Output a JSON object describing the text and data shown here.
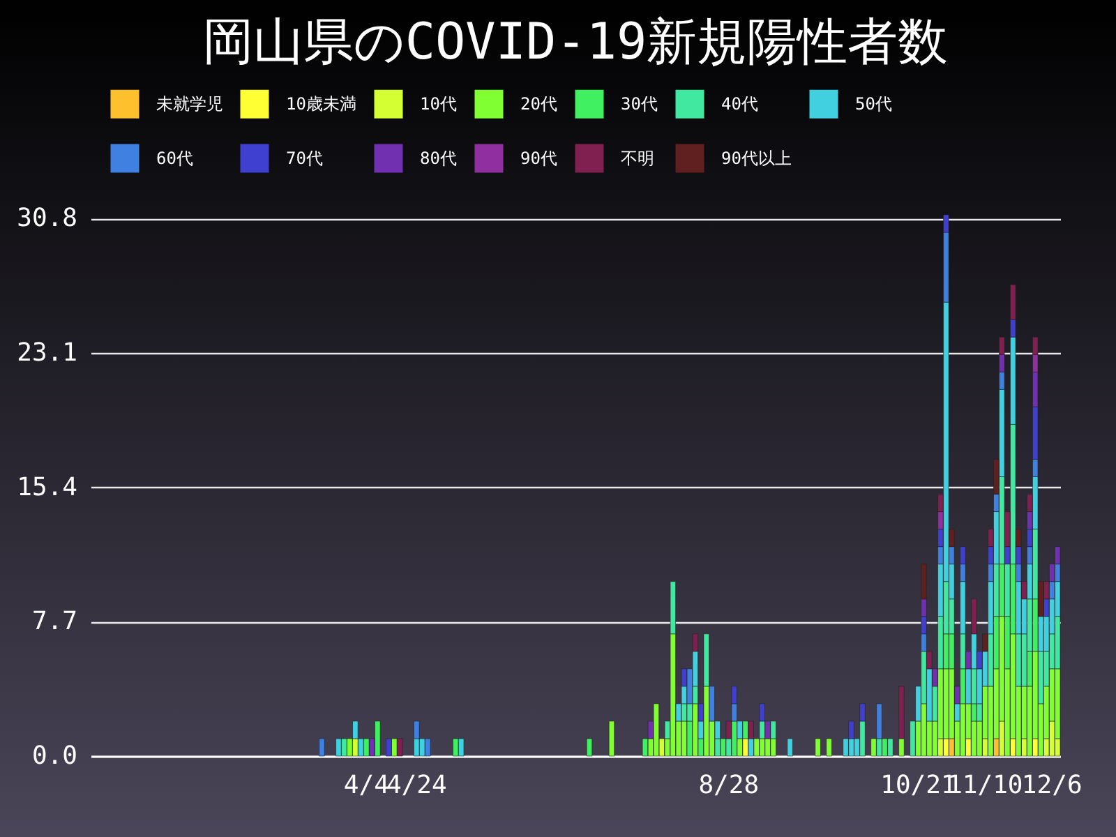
{
  "chart_data": {
    "type": "bar",
    "title": "岡山県のCOVID-19新規陽性者数",
    "stacked": true,
    "legend": "top",
    "grid": "y",
    "categories": [
      null,
      null,
      null,
      null,
      null,
      null,
      null,
      null,
      null,
      null,
      null,
      null,
      null,
      null,
      null,
      null,
      null,
      null,
      null,
      null,
      null,
      null,
      null,
      null,
      null,
      null,
      null,
      null,
      null,
      null,
      null,
      null,
      null,
      null,
      null,
      null,
      null,
      null,
      null,
      null,
      null,
      null,
      null,
      null,
      null,
      null,
      null,
      null,
      null,
      "4/4",
      null,
      null,
      null,
      null,
      null,
      null,
      null,
      null,
      "4/24",
      null,
      null,
      null,
      null,
      null,
      null,
      null,
      null,
      null,
      null,
      null,
      null,
      null,
      null,
      null,
      null,
      null,
      null,
      null,
      null,
      null,
      null,
      null,
      null,
      null,
      null,
      null,
      null,
      null,
      null,
      null,
      null,
      null,
      null,
      null,
      null,
      null,
      null,
      null,
      null,
      null,
      null,
      null,
      null,
      null,
      null,
      null,
      null,
      null,
      null,
      null,
      null,
      null,
      null,
      null,
      "8/28",
      null,
      null,
      null,
      null,
      null,
      null,
      null,
      null,
      null,
      null,
      null,
      null,
      null,
      null,
      null,
      null,
      null,
      null,
      null,
      null,
      null,
      null,
      null,
      null,
      null,
      null,
      null,
      null,
      null,
      null,
      null,
      null,
      null,
      "10/21",
      null,
      null,
      null,
      null,
      null,
      null,
      null,
      null,
      null,
      null,
      null,
      "11/10",
      null,
      null,
      null,
      null,
      null,
      null,
      null,
      null,
      null,
      null,
      null,
      "12/6",
      null
    ],
    "ylim": [
      0,
      31
    ],
    "yticks": [
      {
        "value": 0,
        "label": "0.0"
      },
      7.7,
      15.4,
      23.1,
      30.8
    ],
    "series": [
      {
        "name": "未就学児",
        "color": "#ffc02e",
        "values": [
          0,
          0,
          0,
          0,
          0,
          0,
          0,
          0,
          0,
          0,
          0,
          0,
          0,
          0,
          0,
          0,
          0,
          0,
          0,
          0,
          0,
          0,
          0,
          0,
          0,
          0,
          0,
          0,
          0,
          0,
          0,
          0,
          0,
          0,
          0,
          0,
          0,
          0,
          0,
          0,
          0,
          0,
          0,
          0,
          0,
          0,
          0,
          0,
          0,
          0,
          0,
          0,
          0,
          0,
          0,
          0,
          0,
          0,
          0,
          0,
          0,
          0,
          0,
          0,
          0,
          0,
          0,
          0,
          0,
          0,
          0,
          0,
          0,
          0,
          0,
          0,
          0,
          0,
          0,
          0,
          0,
          0,
          0,
          0,
          0,
          0,
          0,
          0,
          0,
          0,
          0,
          0,
          0,
          0,
          0,
          0,
          0,
          0,
          0,
          0,
          0,
          0,
          0,
          0,
          0,
          0,
          0,
          0,
          0,
          0,
          0,
          0,
          0,
          0,
          0,
          0,
          0,
          0,
          0,
          0,
          0,
          0,
          0,
          0,
          0,
          0,
          0,
          0,
          0,
          0,
          0,
          0,
          0,
          0,
          0,
          0,
          0,
          0,
          0,
          0,
          0,
          0,
          0,
          0,
          0,
          0,
          0,
          0,
          0,
          0,
          0,
          0,
          0,
          0,
          1,
          0,
          0,
          0,
          0,
          0,
          0,
          0,
          1,
          0,
          0,
          0,
          0,
          0,
          0,
          0,
          0,
          0,
          0,
          0
        ]
      },
      {
        "name": "10歳未満",
        "color": "#ffff33",
        "values": [
          0,
          0,
          0,
          0,
          0,
          0,
          0,
          0,
          0,
          0,
          0,
          0,
          0,
          0,
          0,
          0,
          0,
          0,
          0,
          0,
          0,
          0,
          0,
          0,
          0,
          0,
          0,
          0,
          0,
          0,
          0,
          0,
          0,
          0,
          0,
          0,
          0,
          0,
          0,
          0,
          0,
          0,
          0,
          0,
          0,
          0,
          0,
          0,
          0,
          0,
          0,
          0,
          0,
          0,
          0,
          0,
          0,
          0,
          0,
          0,
          0,
          0,
          0,
          0,
          0,
          0,
          0,
          0,
          0,
          0,
          0,
          0,
          0,
          0,
          0,
          0,
          0,
          0,
          0,
          0,
          0,
          0,
          0,
          0,
          0,
          0,
          0,
          0,
          0,
          0,
          0,
          0,
          0,
          0,
          0,
          0,
          0,
          0,
          0,
          0,
          0,
          0,
          0,
          0,
          0,
          0,
          0,
          0,
          0,
          0,
          0,
          0,
          0,
          0,
          0,
          0,
          0,
          1,
          0,
          0,
          0,
          0,
          0,
          0,
          0,
          0,
          0,
          0,
          0,
          0,
          0,
          0,
          0,
          0,
          0,
          0,
          0,
          0,
          0,
          0,
          0,
          0,
          0,
          0,
          0,
          0,
          0,
          0,
          0,
          0,
          0,
          0,
          0,
          1,
          0,
          0,
          0,
          1,
          0,
          0,
          0,
          0,
          0,
          0,
          0,
          1,
          0,
          0,
          0,
          1,
          0,
          0,
          0,
          0
        ]
      },
      {
        "name": "10代",
        "color": "#d4ff33",
        "values": [
          0,
          0,
          0,
          0,
          0,
          0,
          0,
          0,
          0,
          0,
          0,
          0,
          0,
          0,
          0,
          0,
          0,
          0,
          0,
          0,
          0,
          0,
          0,
          0,
          0,
          0,
          0,
          0,
          0,
          0,
          0,
          0,
          0,
          0,
          0,
          0,
          0,
          0,
          0,
          0,
          0,
          0,
          0,
          0,
          0,
          0,
          0,
          1,
          0,
          0,
          0,
          0,
          0,
          0,
          0,
          0,
          0,
          0,
          0,
          0,
          0,
          0,
          0,
          0,
          0,
          0,
          0,
          0,
          0,
          0,
          0,
          0,
          0,
          0,
          0,
          0,
          0,
          0,
          0,
          0,
          0,
          0,
          0,
          0,
          0,
          0,
          0,
          0,
          0,
          0,
          0,
          0,
          0,
          0,
          0,
          0,
          0,
          0,
          0,
          0,
          0,
          0,
          1,
          0,
          0,
          0,
          0,
          0,
          0,
          0,
          0,
          0,
          0,
          0,
          0,
          0,
          0,
          0,
          0,
          0,
          0,
          0,
          0,
          0,
          0,
          0,
          0,
          0,
          0,
          0,
          0,
          0,
          0,
          0,
          0,
          0,
          0,
          0,
          0,
          0,
          0,
          0,
          0,
          0,
          0,
          0,
          0,
          0,
          0,
          0,
          0,
          0,
          1,
          0,
          0,
          0,
          0,
          0,
          0,
          0,
          1,
          0,
          0,
          2,
          0,
          0,
          0,
          1,
          0,
          0,
          0,
          1,
          2,
          1
        ]
      },
      {
        "name": "20代",
        "color": "#80ff33",
        "values": [
          0,
          0,
          0,
          0,
          0,
          0,
          0,
          0,
          0,
          0,
          0,
          0,
          0,
          0,
          0,
          0,
          0,
          0,
          0,
          0,
          0,
          0,
          0,
          0,
          0,
          0,
          0,
          0,
          0,
          0,
          0,
          0,
          0,
          0,
          0,
          0,
          0,
          0,
          0,
          0,
          0,
          0,
          0,
          0,
          0,
          0,
          1,
          0,
          0,
          0,
          0,
          0,
          0,
          0,
          1,
          0,
          0,
          0,
          0,
          0,
          0,
          0,
          0,
          0,
          0,
          0,
          0,
          0,
          0,
          0,
          0,
          0,
          0,
          0,
          0,
          0,
          0,
          0,
          0,
          0,
          0,
          0,
          0,
          0,
          0,
          0,
          0,
          0,
          0,
          0,
          0,
          0,
          0,
          2,
          0,
          0,
          0,
          0,
          0,
          0,
          1,
          3,
          0,
          1,
          7,
          2,
          2,
          0,
          3,
          0,
          4,
          2,
          0,
          0,
          0,
          0,
          1,
          0,
          0,
          1,
          1,
          1,
          1,
          0,
          0,
          0,
          0,
          0,
          0,
          0,
          1,
          0,
          1,
          0,
          0,
          0,
          0,
          0,
          0,
          0,
          1,
          0,
          0,
          0,
          0,
          1,
          0,
          0,
          2,
          3,
          2,
          2,
          4,
          4,
          4,
          2,
          3,
          2,
          2,
          2,
          3,
          4,
          4,
          6,
          5,
          6,
          4,
          3,
          4,
          5,
          3,
          3,
          3,
          4
        ]
      },
      {
        "name": "30代",
        "color": "#40f060",
        "values": [
          0,
          0,
          0,
          0,
          0,
          0,
          0,
          0,
          0,
          0,
          0,
          0,
          0,
          0,
          0,
          0,
          0,
          0,
          0,
          0,
          0,
          0,
          0,
          0,
          0,
          0,
          0,
          0,
          0,
          0,
          0,
          0,
          0,
          0,
          0,
          0,
          0,
          0,
          0,
          0,
          0,
          0,
          0,
          0,
          0,
          0,
          0,
          0,
          0,
          1,
          0,
          2,
          0,
          0,
          0,
          0,
          0,
          0,
          0,
          0,
          0,
          0,
          0,
          0,
          0,
          1,
          0,
          0,
          0,
          0,
          0,
          0,
          0,
          0,
          0,
          0,
          0,
          0,
          0,
          0,
          0,
          0,
          0,
          0,
          0,
          0,
          0,
          0,
          0,
          1,
          0,
          0,
          0,
          0,
          0,
          0,
          0,
          0,
          0,
          1,
          0,
          0,
          0,
          0,
          0,
          0,
          0,
          2,
          0,
          1,
          0,
          0,
          0,
          1,
          0,
          2,
          0,
          1,
          0,
          0,
          0,
          0,
          0,
          0,
          0,
          0,
          0,
          0,
          0,
          0,
          0,
          0,
          0,
          0,
          0,
          0,
          0,
          0,
          0,
          0,
          0,
          0,
          1,
          0,
          0,
          0,
          0,
          0,
          0,
          0,
          0,
          0,
          0,
          2,
          2,
          0,
          2,
          0,
          1,
          0,
          0,
          0,
          3,
          3,
          3,
          4,
          0,
          0,
          2,
          3,
          0,
          0,
          0,
          0
        ]
      },
      {
        "name": "40代",
        "color": "#40e8a0",
        "values": [
          0,
          0,
          0,
          0,
          0,
          0,
          0,
          0,
          0,
          0,
          0,
          0,
          0,
          0,
          0,
          0,
          0,
          0,
          0,
          0,
          0,
          0,
          0,
          0,
          0,
          0,
          0,
          0,
          0,
          0,
          0,
          0,
          0,
          0,
          0,
          0,
          0,
          0,
          0,
          0,
          0,
          0,
          0,
          0,
          0,
          1,
          0,
          0,
          0,
          0,
          0,
          0,
          0,
          0,
          0,
          0,
          0,
          0,
          0,
          0,
          0,
          0,
          0,
          0,
          0,
          0,
          0,
          0,
          0,
          0,
          0,
          0,
          0,
          0,
          0,
          0,
          0,
          0,
          0,
          0,
          0,
          0,
          0,
          0,
          0,
          0,
          0,
          0,
          0,
          0,
          0,
          0,
          0,
          0,
          0,
          0,
          0,
          0,
          0,
          0,
          0,
          0,
          0,
          1,
          3,
          0,
          1,
          1,
          1,
          0,
          3,
          0,
          1,
          0,
          1,
          0,
          0,
          0,
          0,
          0,
          1,
          0,
          1,
          0,
          0,
          0,
          0,
          0,
          0,
          0,
          0,
          0,
          0,
          0,
          0,
          0,
          0,
          0,
          2,
          0,
          0,
          1,
          0,
          1,
          0,
          0,
          0,
          2,
          0,
          3,
          0,
          2,
          3,
          3,
          2,
          0,
          2,
          0,
          2,
          1,
          0,
          3,
          3,
          5,
          3,
          8,
          3,
          3,
          3,
          4,
          3,
          2,
          2,
          3
        ]
      },
      {
        "name": "50代",
        "color": "#40d0e0",
        "values": [
          0,
          0,
          0,
          0,
          0,
          0,
          0,
          0,
          0,
          0,
          0,
          0,
          0,
          0,
          0,
          0,
          0,
          0,
          0,
          0,
          0,
          0,
          0,
          0,
          0,
          0,
          0,
          0,
          0,
          0,
          0,
          0,
          0,
          0,
          0,
          0,
          0,
          0,
          0,
          0,
          0,
          0,
          0,
          0,
          1,
          0,
          0,
          1,
          1,
          0,
          0,
          0,
          0,
          0,
          0,
          0,
          0,
          0,
          1,
          1,
          0,
          0,
          0,
          0,
          0,
          0,
          1,
          0,
          0,
          0,
          0,
          0,
          0,
          0,
          0,
          0,
          0,
          0,
          0,
          0,
          0,
          0,
          0,
          0,
          0,
          0,
          0,
          0,
          0,
          0,
          0,
          0,
          0,
          0,
          0,
          0,
          0,
          0,
          0,
          0,
          0,
          0,
          0,
          0,
          0,
          1,
          1,
          0,
          2,
          1,
          0,
          0,
          1,
          0,
          0,
          0,
          1,
          0,
          1,
          0,
          0,
          0,
          0,
          0,
          0,
          1,
          0,
          0,
          0,
          0,
          0,
          0,
          0,
          0,
          0,
          1,
          1,
          1,
          0,
          0,
          0,
          0,
          0,
          0,
          0,
          0,
          0,
          0,
          2,
          0,
          3,
          0,
          3,
          16,
          2,
          1,
          3,
          2,
          2,
          2,
          2,
          3,
          3,
          5,
          0,
          5,
          3,
          2,
          2,
          3,
          2,
          2,
          2,
          2
        ]
      },
      {
        "name": "60代",
        "color": "#3f80e0",
        "values": [
          0,
          0,
          0,
          0,
          0,
          0,
          0,
          0,
          0,
          0,
          0,
          0,
          0,
          0,
          0,
          0,
          0,
          0,
          0,
          0,
          0,
          0,
          0,
          0,
          0,
          0,
          0,
          0,
          0,
          0,
          0,
          0,
          0,
          0,
          0,
          0,
          0,
          0,
          0,
          0,
          0,
          1,
          0,
          0,
          0,
          0,
          0,
          0,
          0,
          0,
          0,
          0,
          0,
          0,
          0,
          0,
          0,
          0,
          1,
          0,
          1,
          0,
          0,
          0,
          0,
          0,
          0,
          0,
          0,
          0,
          0,
          0,
          0,
          0,
          0,
          0,
          0,
          0,
          0,
          0,
          0,
          0,
          0,
          0,
          0,
          0,
          0,
          0,
          0,
          0,
          0,
          0,
          0,
          0,
          0,
          0,
          0,
          0,
          0,
          0,
          0,
          0,
          0,
          0,
          0,
          0,
          0,
          2,
          0,
          0,
          0,
          2,
          0,
          0,
          0,
          1,
          0,
          0,
          0,
          0,
          0,
          0,
          0,
          0,
          0,
          0,
          0,
          0,
          0,
          0,
          0,
          0,
          0,
          0,
          0,
          0,
          0,
          0,
          0,
          0,
          0,
          2,
          0,
          0,
          0,
          0,
          0,
          0,
          0,
          1,
          0,
          0,
          1,
          4,
          1,
          0,
          1,
          0,
          0,
          0,
          0,
          1,
          1,
          1,
          0,
          0,
          1,
          0,
          1,
          1,
          0,
          0,
          1,
          1
        ]
      },
      {
        "name": "70代",
        "color": "#4040d0",
        "values": [
          0,
          0,
          0,
          0,
          0,
          0,
          0,
          0,
          0,
          0,
          0,
          0,
          0,
          0,
          0,
          0,
          0,
          0,
          0,
          0,
          0,
          0,
          0,
          0,
          0,
          0,
          0,
          0,
          0,
          0,
          0,
          0,
          0,
          0,
          0,
          0,
          0,
          0,
          0,
          0,
          0,
          0,
          0,
          0,
          0,
          0,
          0,
          0,
          0,
          0,
          0,
          0,
          0,
          1,
          0,
          0,
          0,
          0,
          0,
          0,
          0,
          0,
          0,
          0,
          0,
          0,
          0,
          0,
          0,
          0,
          0,
          0,
          0,
          0,
          0,
          0,
          0,
          0,
          0,
          0,
          0,
          0,
          0,
          0,
          0,
          0,
          0,
          0,
          0,
          0,
          0,
          0,
          0,
          0,
          0,
          0,
          0,
          0,
          0,
          0,
          0,
          0,
          0,
          0,
          0,
          0,
          1,
          0,
          0,
          1,
          0,
          0,
          0,
          0,
          0,
          1,
          0,
          0,
          0,
          0,
          1,
          0,
          0,
          0,
          0,
          0,
          0,
          0,
          0,
          0,
          0,
          0,
          0,
          0,
          0,
          0,
          1,
          0,
          1,
          0,
          0,
          0,
          0,
          0,
          0,
          0,
          0,
          0,
          0,
          1,
          0,
          0,
          1,
          1,
          0,
          0,
          1,
          0,
          0,
          1,
          0,
          1,
          0,
          0,
          1,
          1,
          1,
          0,
          1,
          3,
          0,
          1,
          0,
          0
        ]
      },
      {
        "name": "80代",
        "color": "#7030b0",
        "values": [
          0,
          0,
          0,
          0,
          0,
          0,
          0,
          0,
          0,
          0,
          0,
          0,
          0,
          0,
          0,
          0,
          0,
          0,
          0,
          0,
          0,
          0,
          0,
          0,
          0,
          0,
          0,
          0,
          0,
          0,
          0,
          0,
          0,
          0,
          0,
          0,
          0,
          0,
          0,
          0,
          0,
          0,
          0,
          0,
          0,
          0,
          0,
          0,
          0,
          0,
          1,
          0,
          0,
          0,
          0,
          0,
          0,
          0,
          0,
          0,
          0,
          0,
          0,
          0,
          0,
          0,
          0,
          0,
          0,
          0,
          0,
          0,
          0,
          0,
          0,
          0,
          0,
          0,
          0,
          0,
          0,
          0,
          0,
          0,
          0,
          0,
          0,
          0,
          0,
          0,
          0,
          0,
          0,
          0,
          0,
          0,
          0,
          0,
          0,
          0,
          1,
          0,
          0,
          0,
          0,
          0,
          0,
          0,
          0,
          0,
          0,
          0,
          0,
          0,
          0,
          0,
          0,
          0,
          0,
          0,
          0,
          1,
          0,
          0,
          0,
          0,
          0,
          0,
          0,
          0,
          0,
          0,
          0,
          0,
          0,
          0,
          0,
          0,
          0,
          0,
          0,
          0,
          0,
          0,
          0,
          0,
          0,
          0,
          0,
          1,
          0,
          1,
          0,
          0,
          0,
          1,
          0,
          1,
          0,
          0,
          0,
          0,
          0,
          1,
          0,
          0,
          0,
          0,
          1,
          2,
          0,
          0,
          1,
          1
        ]
      },
      {
        "name": "90代",
        "color": "#9030a0",
        "values": [
          0,
          0,
          0,
          0,
          0,
          0,
          0,
          0,
          0,
          0,
          0,
          0,
          0,
          0,
          0,
          0,
          0,
          0,
          0,
          0,
          0,
          0,
          0,
          0,
          0,
          0,
          0,
          0,
          0,
          0,
          0,
          0,
          0,
          0,
          0,
          0,
          0,
          0,
          0,
          0,
          0,
          0,
          0,
          0,
          0,
          0,
          0,
          0,
          0,
          0,
          0,
          0,
          0,
          0,
          0,
          0,
          0,
          0,
          0,
          0,
          0,
          0,
          0,
          0,
          0,
          0,
          0,
          0,
          0,
          0,
          0,
          0,
          0,
          0,
          0,
          0,
          0,
          0,
          0,
          0,
          0,
          0,
          0,
          0,
          0,
          0,
          0,
          0,
          0,
          0,
          0,
          0,
          0,
          0,
          0,
          0,
          0,
          0,
          0,
          0,
          0,
          0,
          0,
          0,
          0,
          0,
          0,
          0,
          0,
          0,
          0,
          0,
          0,
          0,
          0,
          0,
          0,
          0,
          0,
          0,
          0,
          0,
          0,
          0,
          0,
          0,
          0,
          0,
          0,
          0,
          0,
          0,
          0,
          0,
          0,
          0,
          0,
          0,
          0,
          0,
          0,
          0,
          0,
          0,
          0,
          0,
          0,
          0,
          0,
          0,
          0,
          0,
          1,
          0,
          0,
          0,
          0,
          0,
          0,
          0,
          0,
          0,
          0,
          0,
          0,
          0,
          0,
          0,
          0,
          1,
          0,
          0,
          0,
          0
        ]
      },
      {
        "name": "不明",
        "color": "#802050",
        "values": [
          0,
          0,
          0,
          0,
          0,
          0,
          0,
          0,
          0,
          0,
          0,
          0,
          0,
          0,
          0,
          0,
          0,
          0,
          0,
          0,
          0,
          0,
          0,
          0,
          0,
          0,
          0,
          0,
          0,
          0,
          0,
          0,
          0,
          0,
          0,
          0,
          0,
          0,
          0,
          0,
          0,
          0,
          0,
          0,
          0,
          0,
          0,
          0,
          0,
          0,
          0,
          0,
          0,
          0,
          0,
          1,
          0,
          0,
          0,
          0,
          0,
          0,
          0,
          0,
          0,
          0,
          0,
          0,
          0,
          0,
          0,
          0,
          0,
          0,
          0,
          0,
          0,
          0,
          0,
          0,
          0,
          0,
          0,
          0,
          0,
          0,
          0,
          0,
          0,
          0,
          0,
          0,
          0,
          0,
          0,
          0,
          0,
          0,
          0,
          0,
          0,
          0,
          0,
          0,
          0,
          0,
          0,
          0,
          1,
          0,
          0,
          0,
          0,
          0,
          1,
          0,
          0,
          0,
          1,
          0,
          0,
          0,
          0,
          0,
          0,
          0,
          0,
          0,
          0,
          0,
          0,
          0,
          0,
          0,
          0,
          0,
          0,
          0,
          0,
          0,
          0,
          0,
          0,
          0,
          0,
          3,
          0,
          0,
          0,
          0,
          1,
          0,
          1,
          0,
          0,
          0,
          0,
          0,
          2,
          0,
          0,
          1,
          0,
          1,
          2,
          2,
          0,
          1,
          1,
          1,
          0,
          1,
          0,
          0
        ]
      },
      {
        "name": "90代以上",
        "color": "#602020",
        "values": [
          0,
          0,
          0,
          0,
          0,
          0,
          0,
          0,
          0,
          0,
          0,
          0,
          0,
          0,
          0,
          0,
          0,
          0,
          0,
          0,
          0,
          0,
          0,
          0,
          0,
          0,
          0,
          0,
          0,
          0,
          0,
          0,
          0,
          0,
          0,
          0,
          0,
          0,
          0,
          0,
          0,
          0,
          0,
          0,
          0,
          0,
          0,
          0,
          0,
          0,
          0,
          0,
          0,
          0,
          0,
          0,
          0,
          0,
          0,
          0,
          0,
          0,
          0,
          0,
          0,
          0,
          0,
          0,
          0,
          0,
          0,
          0,
          0,
          0,
          0,
          0,
          0,
          0,
          0,
          0,
          0,
          0,
          0,
          0,
          0,
          0,
          0,
          0,
          0,
          0,
          0,
          0,
          0,
          0,
          0,
          0,
          0,
          0,
          0,
          0,
          0,
          0,
          0,
          0,
          0,
          0,
          0,
          0,
          0,
          0,
          0,
          0,
          0,
          0,
          0,
          0,
          0,
          0,
          0,
          0,
          0,
          0,
          0,
          0,
          0,
          0,
          0,
          0,
          0,
          0,
          0,
          0,
          0,
          0,
          0,
          0,
          0,
          0,
          0,
          0,
          0,
          0,
          0,
          0,
          0,
          0,
          0,
          0,
          0,
          2,
          0,
          0,
          0,
          0,
          1,
          0,
          0,
          0,
          0,
          0,
          1,
          0,
          2,
          0,
          0,
          0,
          1,
          0,
          0,
          0,
          2,
          0,
          0,
          0
        ]
      }
    ]
  }
}
